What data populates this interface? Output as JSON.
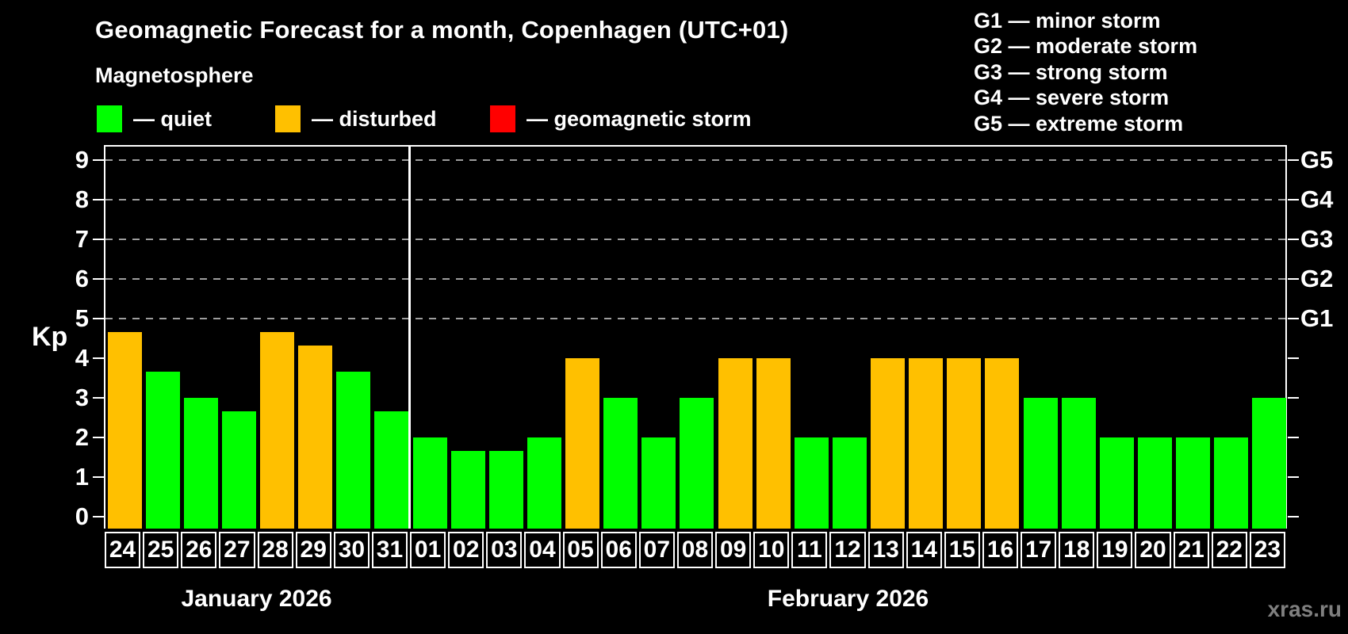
{
  "header": {
    "title": "Geomagnetic Forecast for a month, Copenhagen (UTC+01)",
    "subtitle": "Magnetosphere"
  },
  "legend": {
    "items": [
      {
        "key": "quiet",
        "label": "— quiet",
        "color": "#00ff00"
      },
      {
        "key": "disturbed",
        "label": "— disturbed",
        "color": "#ffc000"
      },
      {
        "key": "storm",
        "label": "— geomagnetic storm",
        "color": "#ff0000"
      }
    ]
  },
  "g_scale_legend": {
    "lines": [
      "G1 — minor storm",
      "G2 — moderate storm",
      "G3 — strong storm",
      "G4 — severe storm",
      "G5 — extreme storm"
    ]
  },
  "watermark": "xras.ru",
  "chart_data": {
    "type": "bar",
    "title": "Geomagnetic Forecast for a month, Copenhagen (UTC+01)",
    "ylabel": "Kp",
    "ylim": [
      0,
      9
    ],
    "yticks_left": [
      0,
      1,
      2,
      3,
      4,
      5,
      6,
      7,
      8,
      9
    ],
    "grid_levels": [
      5,
      6,
      7,
      8,
      9
    ],
    "grid_style": "dashed",
    "right_axis_labels": [
      {
        "kp": 5,
        "label": "G1"
      },
      {
        "kp": 6,
        "label": "G2"
      },
      {
        "kp": 7,
        "label": "G3"
      },
      {
        "kp": 8,
        "label": "G4"
      },
      {
        "kp": 9,
        "label": "G5"
      }
    ],
    "colors": {
      "quiet": "#00ff00",
      "disturbed": "#ffc000",
      "storm": "#ff0000"
    },
    "months": [
      {
        "label": "January 2026",
        "start_index": 0,
        "count": 8
      },
      {
        "label": "February 2026",
        "start_index": 8,
        "count": 23
      }
    ],
    "bars": [
      {
        "day": "24",
        "kp": 4.67,
        "state": "disturbed"
      },
      {
        "day": "25",
        "kp": 3.67,
        "state": "quiet"
      },
      {
        "day": "26",
        "kp": 3.0,
        "state": "quiet"
      },
      {
        "day": "27",
        "kp": 2.67,
        "state": "quiet"
      },
      {
        "day": "28",
        "kp": 4.67,
        "state": "disturbed"
      },
      {
        "day": "29",
        "kp": 4.33,
        "state": "disturbed"
      },
      {
        "day": "30",
        "kp": 3.67,
        "state": "quiet"
      },
      {
        "day": "31",
        "kp": 2.67,
        "state": "quiet"
      },
      {
        "day": "01",
        "kp": 2.0,
        "state": "quiet"
      },
      {
        "day": "02",
        "kp": 1.67,
        "state": "quiet"
      },
      {
        "day": "03",
        "kp": 1.67,
        "state": "quiet"
      },
      {
        "day": "04",
        "kp": 2.0,
        "state": "quiet"
      },
      {
        "day": "05",
        "kp": 4.0,
        "state": "disturbed"
      },
      {
        "day": "06",
        "kp": 3.0,
        "state": "quiet"
      },
      {
        "day": "07",
        "kp": 2.0,
        "state": "quiet"
      },
      {
        "day": "08",
        "kp": 3.0,
        "state": "quiet"
      },
      {
        "day": "09",
        "kp": 4.0,
        "state": "disturbed"
      },
      {
        "day": "10",
        "kp": 4.0,
        "state": "disturbed"
      },
      {
        "day": "11",
        "kp": 2.0,
        "state": "quiet"
      },
      {
        "day": "12",
        "kp": 2.0,
        "state": "quiet"
      },
      {
        "day": "13",
        "kp": 4.0,
        "state": "disturbed"
      },
      {
        "day": "14",
        "kp": 4.0,
        "state": "disturbed"
      },
      {
        "day": "15",
        "kp": 4.0,
        "state": "disturbed"
      },
      {
        "day": "16",
        "kp": 4.0,
        "state": "disturbed"
      },
      {
        "day": "17",
        "kp": 3.0,
        "state": "quiet"
      },
      {
        "day": "18",
        "kp": 3.0,
        "state": "quiet"
      },
      {
        "day": "19",
        "kp": 2.0,
        "state": "quiet"
      },
      {
        "day": "20",
        "kp": 2.0,
        "state": "quiet"
      },
      {
        "day": "21",
        "kp": 2.0,
        "state": "quiet"
      },
      {
        "day": "22",
        "kp": 2.0,
        "state": "quiet"
      },
      {
        "day": "23",
        "kp": 3.0,
        "state": "quiet"
      }
    ]
  }
}
